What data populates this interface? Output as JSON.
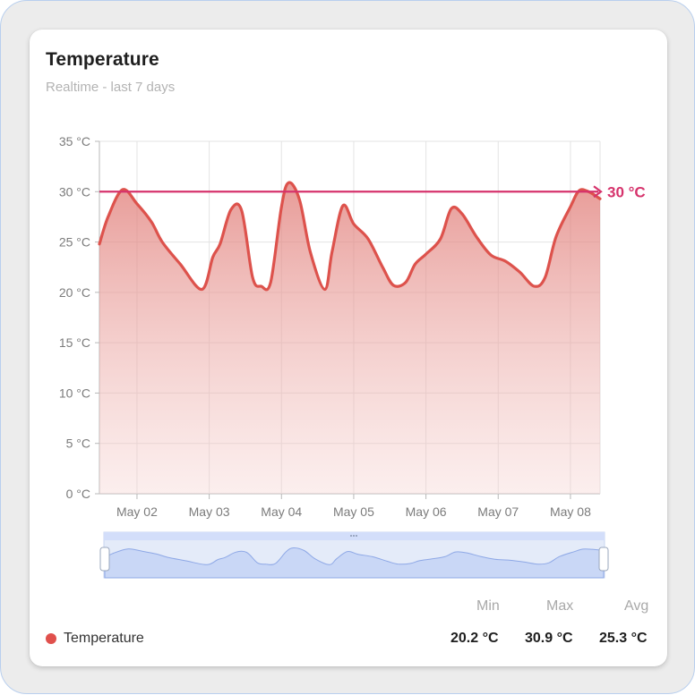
{
  "card": {
    "title": "Temperature",
    "subtitle": "Realtime - last 7 days"
  },
  "chart_data": {
    "type": "area",
    "y_ticks": [
      "35 °C",
      "30 °C",
      "25 °C",
      "20 °C",
      "15 °C",
      "10 °C",
      "5 °C",
      "0 °C"
    ],
    "x_ticks": [
      "May 02",
      "May 03",
      "May 04",
      "May 05",
      "May 06",
      "May 07",
      "May 08"
    ],
    "ylim": [
      0,
      35
    ],
    "xlim": [
      1.48,
      8.41
    ],
    "series": [
      {
        "name": "Temperature",
        "color": "#e0504c",
        "x": [
          1.48,
          1.6,
          1.8,
          2.0,
          2.2,
          2.35,
          2.6,
          2.9,
          3.05,
          3.15,
          3.3,
          3.45,
          3.6,
          3.72,
          3.85,
          4.0,
          4.1,
          4.25,
          4.4,
          4.6,
          4.7,
          4.85,
          5.0,
          5.2,
          5.4,
          5.55,
          5.72,
          5.85,
          6.0,
          6.2,
          6.35,
          6.5,
          6.7,
          6.9,
          7.1,
          7.3,
          7.5,
          7.65,
          7.8,
          8.0,
          8.12,
          8.25,
          8.41
        ],
        "values": [
          24.8,
          27.5,
          30.2,
          28.8,
          27.0,
          25.0,
          22.8,
          20.3,
          23.5,
          24.8,
          28.2,
          28.1,
          21.5,
          20.6,
          21.0,
          28.5,
          30.9,
          29.2,
          24.0,
          20.3,
          24.0,
          28.6,
          26.8,
          25.3,
          22.5,
          20.7,
          21.0,
          22.8,
          23.8,
          25.3,
          28.3,
          27.8,
          25.5,
          23.7,
          23.1,
          22.0,
          20.6,
          21.5,
          25.5,
          28.5,
          30.1,
          30.0,
          29.3
        ]
      }
    ],
    "threshold": {
      "value": 30,
      "label": "30 °C",
      "color": "#d6336c"
    },
    "grid": true
  },
  "stats": {
    "headers": [
      "Min",
      "Max",
      "Avg"
    ],
    "series_label": "Temperature",
    "values": [
      "20.2 °C",
      "30.9 °C",
      "25.3 °C"
    ]
  },
  "navigator": {
    "handle_icon": "drag-dots-icon"
  }
}
